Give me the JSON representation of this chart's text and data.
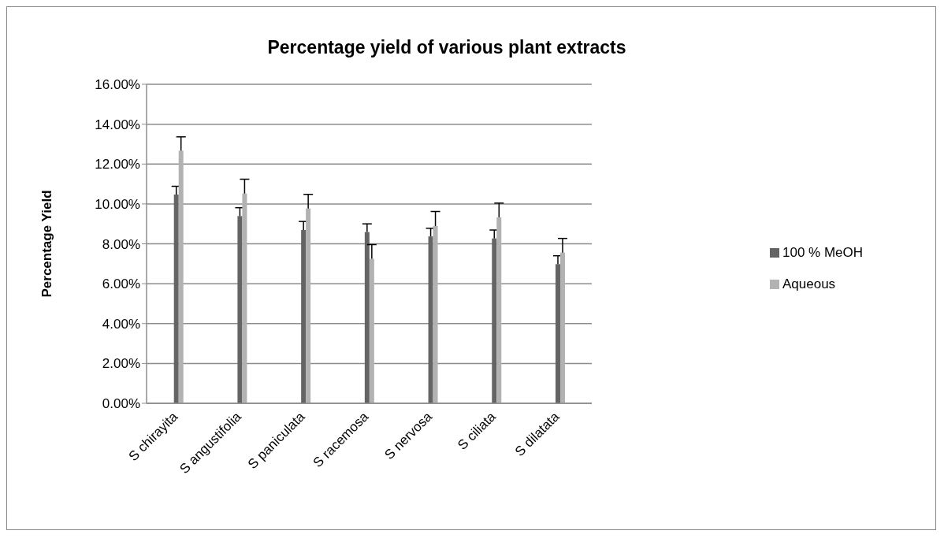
{
  "chart_data": {
    "type": "bar",
    "title": "Percentage yield of various plant extracts",
    "ylabel": "Percentage Yield",
    "categories": [
      "S chirayita",
      "S angustifolia",
      "S paniculata",
      "S racemosa",
      "S nervosa",
      "S ciliata",
      "S dilatata"
    ],
    "series": [
      {
        "name": "100 % MeOH",
        "color": "#646464",
        "values": [
          10.47,
          9.39,
          8.69,
          8.59,
          8.37,
          8.27,
          6.98
        ],
        "errors": [
          [
            10.47,
            10.88
          ],
          [
            9.39,
            9.81
          ],
          [
            8.69,
            9.12
          ],
          [
            8.59,
            9.0
          ],
          [
            8.37,
            8.78
          ],
          [
            8.27,
            8.69
          ],
          [
            6.98,
            7.4
          ]
        ]
      },
      {
        "name": "Aqueous",
        "color": "#b2b2b2",
        "values": [
          12.67,
          10.52,
          9.77,
          7.25,
          8.89,
          9.33,
          7.56
        ],
        "errors": [
          [
            12.67,
            13.36
          ],
          [
            10.52,
            11.24
          ],
          [
            9.77,
            10.48
          ],
          [
            7.25,
            7.96
          ],
          [
            8.89,
            9.62
          ],
          [
            9.33,
            10.04
          ],
          [
            7.56,
            8.27
          ]
        ]
      }
    ],
    "ylim": [
      0,
      16
    ],
    "yticks": [
      {
        "value": 0,
        "label": "0.00%"
      },
      {
        "value": 2,
        "label": "2.00%"
      },
      {
        "value": 4,
        "label": "4.00%"
      },
      {
        "value": 6,
        "label": "6.00%"
      },
      {
        "value": 8,
        "label": "8.00%"
      },
      {
        "value": 10,
        "label": "10.00%"
      },
      {
        "value": 12,
        "label": "12.00%"
      },
      {
        "value": 14,
        "label": "14.00%"
      },
      {
        "value": 16,
        "label": "16.00%"
      }
    ],
    "grid": "y",
    "legend": "right"
  }
}
